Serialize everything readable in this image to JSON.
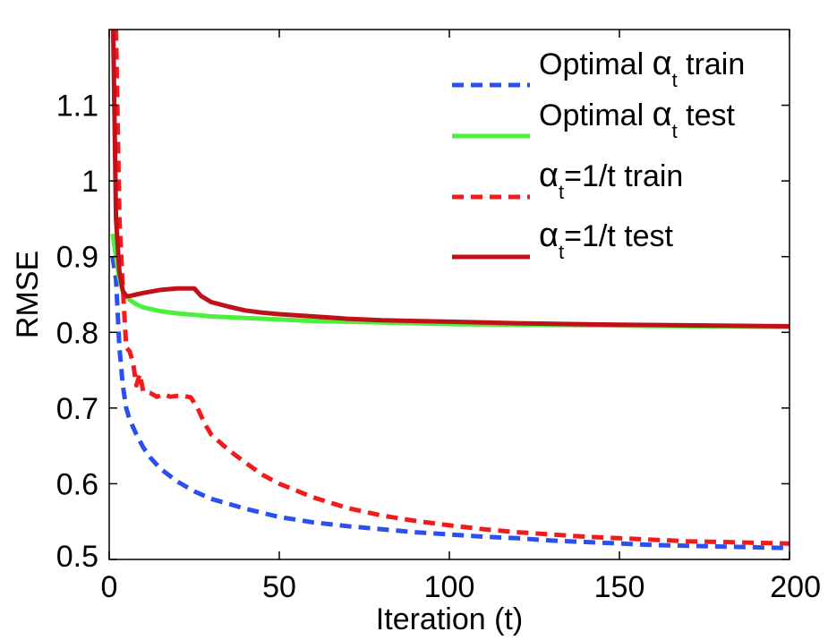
{
  "chart_data": {
    "type": "line",
    "title": "",
    "xlabel": "Iteration (t)",
    "ylabel": "RMSE",
    "xlim": [
      0,
      200
    ],
    "ylim": [
      0.5,
      1.2
    ],
    "xticks": [
      0,
      50,
      100,
      150,
      200
    ],
    "xtick_labels": [
      "0",
      "50",
      "100",
      "150",
      "200"
    ],
    "yticks": [
      0.5,
      0.6,
      0.7,
      0.8,
      0.9,
      1.0,
      1.1
    ],
    "ytick_labels": [
      "0.5",
      "0.6",
      "0.7",
      "0.8",
      "0.9",
      "1",
      "1.1"
    ],
    "grid": false,
    "legend_position": "top-right",
    "series": [
      {
        "id": "opt_train",
        "legend": {
          "greek": "α",
          "sub": "t",
          "prefix": "Optimal ",
          "suffix": " train"
        },
        "color": "#2b4ff0",
        "dash": "dashed",
        "x": [
          1,
          2,
          3,
          4,
          5,
          6,
          8,
          10,
          12,
          15,
          20,
          25,
          30,
          40,
          50,
          60,
          70,
          80,
          90,
          100,
          110,
          120,
          130,
          140,
          150,
          160,
          170,
          180,
          190,
          200
        ],
        "y": [
          0.9,
          0.87,
          0.78,
          0.73,
          0.7,
          0.685,
          0.665,
          0.648,
          0.635,
          0.62,
          0.603,
          0.59,
          0.58,
          0.567,
          0.556,
          0.549,
          0.544,
          0.54,
          0.536,
          0.533,
          0.53,
          0.528,
          0.525,
          0.523,
          0.521,
          0.519,
          0.518,
          0.517,
          0.516,
          0.515
        ]
      },
      {
        "id": "opt_test",
        "legend": {
          "greek": "α",
          "sub": "t",
          "prefix": "Optimal ",
          "suffix": " test"
        },
        "color": "#4cf03c",
        "dash": "solid",
        "x": [
          1,
          2,
          3,
          4,
          5,
          6,
          8,
          10,
          15,
          20,
          25,
          30,
          40,
          50,
          60,
          80,
          100,
          120,
          150,
          200
        ],
        "y": [
          0.93,
          0.9,
          0.87,
          0.855,
          0.848,
          0.843,
          0.837,
          0.833,
          0.828,
          0.825,
          0.823,
          0.821,
          0.819,
          0.817,
          0.815,
          0.813,
          0.811,
          0.81,
          0.809,
          0.807
        ]
      },
      {
        "id": "inv_train",
        "legend": {
          "greek": "α",
          "sub": "t",
          "prefix": "",
          "suffix": "=1/t train"
        },
        "color": "#f21b1b",
        "dash": "dashed",
        "x": [
          1,
          2,
          3,
          4,
          5,
          6,
          7,
          8,
          9,
          10,
          12,
          14,
          16,
          18,
          20,
          22,
          24,
          26,
          28,
          30,
          35,
          40,
          45,
          50,
          60,
          70,
          80,
          90,
          100,
          110,
          120,
          130,
          140,
          150,
          160,
          170,
          180,
          190,
          200
        ],
        "y": [
          1.25,
          1.2,
          0.95,
          0.86,
          0.78,
          0.775,
          0.76,
          0.73,
          0.745,
          0.722,
          0.72,
          0.715,
          0.718,
          0.715,
          0.716,
          0.716,
          0.714,
          0.7,
          0.68,
          0.665,
          0.645,
          0.628,
          0.612,
          0.6,
          0.582,
          0.568,
          0.558,
          0.551,
          0.545,
          0.54,
          0.536,
          0.533,
          0.53,
          0.528,
          0.526,
          0.524,
          0.523,
          0.522,
          0.521
        ]
      },
      {
        "id": "inv_test",
        "legend": {
          "greek": "α",
          "sub": "t",
          "prefix": "",
          "suffix": "=1/t test"
        },
        "color": "#c0111a",
        "dash": "solid",
        "x": [
          1,
          1.5,
          2,
          3,
          4,
          5,
          6,
          8,
          10,
          15,
          20,
          25,
          27,
          30,
          35,
          40,
          45,
          50,
          60,
          70,
          80,
          90,
          100,
          120,
          150,
          200
        ],
        "y": [
          1.25,
          1.1,
          0.95,
          0.88,
          0.855,
          0.848,
          0.848,
          0.85,
          0.852,
          0.856,
          0.858,
          0.858,
          0.848,
          0.84,
          0.834,
          0.829,
          0.826,
          0.824,
          0.821,
          0.818,
          0.816,
          0.815,
          0.814,
          0.812,
          0.81,
          0.808
        ]
      }
    ]
  }
}
